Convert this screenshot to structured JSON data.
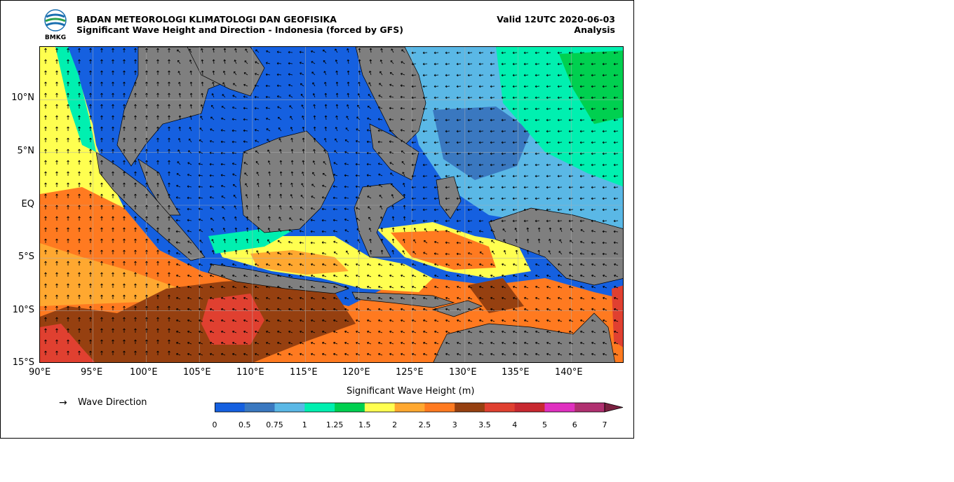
{
  "header": {
    "org": "BADAN METEOROLOGI KLIMATOLOGI DAN GEOFISIKA",
    "subtitle": "Significant Wave Height and Direction - Indonesia (forced by GFS)",
    "valid": "Valid 12UTC 2020-06-03",
    "analysis": "Analysis",
    "logo_text": "BMKG"
  },
  "axes": {
    "lat_labels": [
      "10°N",
      "5°N",
      "EQ",
      "5°S",
      "10°S",
      "15°S"
    ],
    "lon_labels": [
      "90°E",
      "95°E",
      "100°E",
      "105°E",
      "110°E",
      "115°E",
      "120°E",
      "125°E",
      "130°E",
      "135°E",
      "140°E"
    ],
    "lon_range": [
      90,
      145
    ],
    "lat_range": [
      -15,
      15
    ]
  },
  "colorbar": {
    "title": "Significant Wave Height (m)",
    "ticks": [
      "0",
      "0.5",
      "0.75",
      "1",
      "1.25",
      "1.5",
      "2",
      "2.5",
      "3",
      "3.5",
      "4",
      "5",
      "6",
      "7"
    ],
    "colors": [
      "#1560e0",
      "#3a78c0",
      "#5ab8e6",
      "#00f0b0",
      "#00d050",
      "#ffff50",
      "#ffa830",
      "#ff7a20",
      "#964010",
      "#e04030",
      "#c82830",
      "#e030c0",
      "#b03070",
      "#7a2040"
    ]
  },
  "legend": {
    "arrow_symbol": "→",
    "label": "Wave Direction"
  },
  "map_colors": {
    "land": "#7f7f7f",
    "calm": "#1560e0",
    "mid_blue": "#3a78c0",
    "light_blue": "#5ab8e6",
    "cyan": "#00f0b0",
    "green": "#00d050",
    "yellow": "#ffff50",
    "light_orange": "#ffa830",
    "orange": "#ff7a20",
    "brown": "#964010",
    "red": "#e04030"
  }
}
